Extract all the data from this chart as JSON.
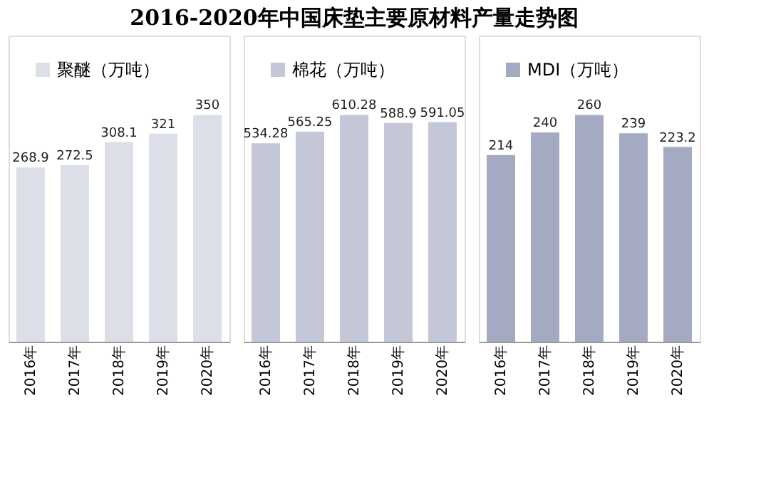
{
  "chart_data": [
    {
      "type": "bar",
      "title": "2016-2020年中国床垫主要原材料产量走势图",
      "categories": [
        "2016年",
        "2017年",
        "2018年",
        "2019年",
        "2020年"
      ],
      "series": [
        {
          "name": "聚醚（万吨）",
          "color": "#dcdfe8",
          "values": [
            268.9,
            272.5,
            308.1,
            321,
            350
          ]
        }
      ],
      "data_labels": true,
      "legend": "top left",
      "tick_labels": "x",
      "grid": false
    },
    {
      "type": "bar",
      "categories": [
        "2016年",
        "2017年",
        "2018年",
        "2019年",
        "2020年"
      ],
      "series": [
        {
          "name": "棉花（万吨）",
          "color": "#c3c7d8",
          "values": [
            534.28,
            565.25,
            610.28,
            588.9,
            591.05
          ]
        }
      ],
      "data_labels": true,
      "legend": "top left",
      "tick_labels": "x",
      "grid": false
    },
    {
      "type": "bar",
      "categories": [
        "2016年",
        "2017年",
        "2018年",
        "2019年",
        "2020年"
      ],
      "series": [
        {
          "name": "MDI（万吨）",
          "color": "#a5aac3",
          "values": [
            214,
            240,
            260,
            239,
            223.2
          ]
        }
      ],
      "data_labels": true,
      "legend": "top left",
      "tick_labels": "x",
      "grid": false
    }
  ]
}
